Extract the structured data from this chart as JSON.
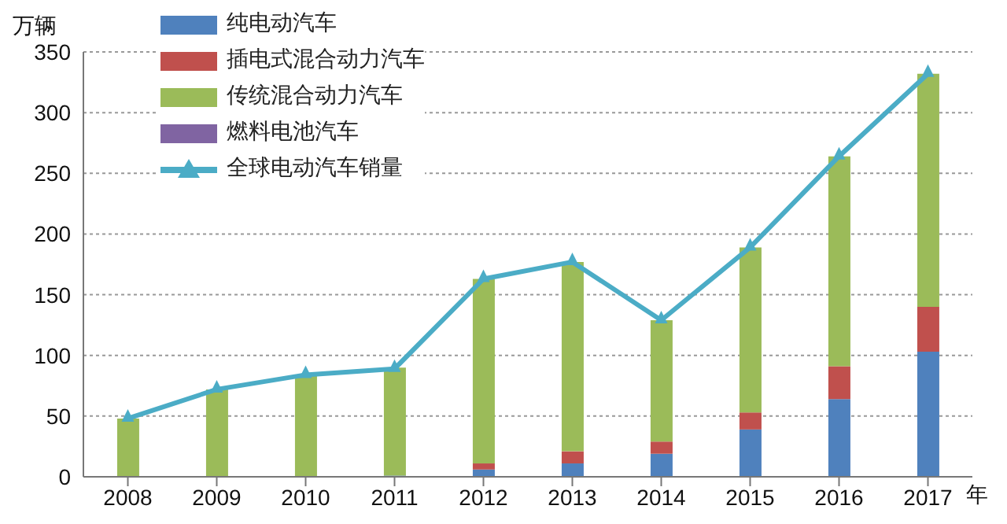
{
  "chart_data": {
    "type": "bar",
    "stacked": true,
    "ylabel": "万辆",
    "xlabel": "年",
    "categories": [
      "2008",
      "2009",
      "2010",
      "2011",
      "2012",
      "2013",
      "2014",
      "2015",
      "2016",
      "2017"
    ],
    "series": [
      {
        "name": "纯电动汽车",
        "color": "#4f81bd",
        "values": [
          0,
          0,
          0,
          1,
          6,
          11,
          19,
          39,
          64,
          103
        ]
      },
      {
        "name": "插电式混合动力汽车",
        "color": "#c0504d",
        "values": [
          0,
          0,
          0,
          0,
          5,
          10,
          10,
          14,
          27,
          37
        ]
      },
      {
        "name": "传统混合动力汽车",
        "color": "#9bbb59",
        "values": [
          48,
          72,
          84,
          89,
          152,
          156,
          100,
          136,
          173,
          192
        ]
      },
      {
        "name": "燃料电池汽车",
        "color": "#8064a2",
        "values": [
          0,
          0,
          0,
          0,
          0,
          0,
          0,
          0,
          0,
          0
        ]
      },
      {
        "name": "全球电动汽车销量",
        "type": "line",
        "color": "#4bacc6",
        "marker": "triangle",
        "values": [
          48,
          72,
          84,
          89,
          163,
          177,
          129,
          189,
          264,
          332
        ]
      }
    ],
    "ylim": [
      0,
      350
    ],
    "yticks": [
      0,
      50,
      100,
      150,
      200,
      250,
      300,
      350
    ],
    "grid": "y",
    "legend": "top left"
  }
}
